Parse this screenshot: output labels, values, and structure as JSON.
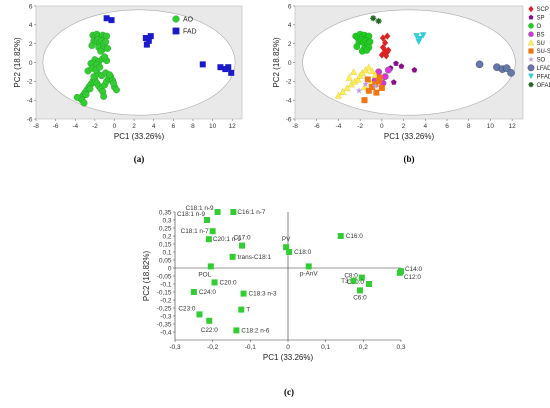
{
  "chart_data": [
    {
      "panel": "(a)",
      "type": "scatter",
      "xlabel": "PC1 (33.26%)",
      "ylabel": "PC2 (18.82%)",
      "xlim": [
        -8,
        13
      ],
      "ylim": [
        -6,
        6
      ],
      "xticks": [
        -8,
        -6,
        -4,
        -2,
        0,
        2,
        4,
        6,
        8,
        10,
        12
      ],
      "yticks": [
        -6,
        -4,
        -2,
        0,
        2,
        4,
        6
      ],
      "confidence_ellipse": true,
      "legend_position": "top-right",
      "series": [
        {
          "name": "AO",
          "color": "#33cc33",
          "marker": "circle",
          "x": [
            -2.2,
            -2.0,
            -1.8,
            -1.6,
            -1.4,
            -1.2,
            -1.0,
            -0.8,
            -2.1,
            -1.9,
            -1.7,
            -1.5,
            -1.3,
            -1.1,
            -0.9,
            -1.6,
            -1.2,
            -0.7,
            -2.3,
            -1.4,
            -2.0,
            -1.6,
            -1.2,
            -0.8,
            -2.4,
            -1.8,
            -1.0,
            -3.5,
            -3.2,
            -3.0,
            -2.8,
            -2.6,
            -2.4,
            -2.2,
            -2.0,
            -1.8,
            -1.6,
            -1.4,
            -1.2,
            -1.0,
            -0.8,
            -0.6,
            -0.4,
            -0.2,
            0.0,
            0.2,
            -3.8,
            -3.3,
            -2.9,
            -2.5,
            -2.1,
            -1.7,
            -1.3,
            -0.9,
            -0.5,
            -0.1,
            -2.7,
            -2.3,
            -1.9,
            -1.5,
            -3.1,
            -1.1
          ],
          "y": [
            2.9,
            2.7,
            3.0,
            2.8,
            2.6,
            2.9,
            2.7,
            2.8,
            2.3,
            2.2,
            2.4,
            2.1,
            2.3,
            2.0,
            2.2,
            1.6,
            1.4,
            1.5,
            1.8,
            1.2,
            0.3,
            0.1,
            0.4,
            0.2,
            -0.1,
            -0.2,
            0.6,
            -3.8,
            -3.5,
            -3.2,
            -2.9,
            -2.6,
            -2.3,
            -2.0,
            -1.8,
            -2.2,
            -2.5,
            -2.8,
            -3.1,
            -2.4,
            -2.0,
            -1.7,
            -1.5,
            -1.9,
            -2.6,
            -2.9,
            -3.7,
            -4.0,
            -3.4,
            -2.8,
            -1.5,
            -1.2,
            -1.4,
            -1.1,
            -1.3,
            -2.2,
            -0.9,
            -0.6,
            -0.8,
            -0.5,
            -4.3,
            -3.6
          ]
        },
        {
          "name": "FAD",
          "color": "#1a1acc",
          "marker": "square",
          "x": [
            -0.8,
            -0.3,
            3.2,
            3.5,
            3.7,
            3.3,
            9.0,
            10.8,
            11.3,
            11.6,
            11.9
          ],
          "y": [
            4.7,
            4.5,
            2.6,
            2.3,
            2.8,
            1.9,
            -0.2,
            -0.5,
            -0.7,
            -0.5,
            -1.1
          ]
        }
      ]
    },
    {
      "panel": "(b)",
      "type": "scatter",
      "xlabel": "PC1 (33.26%)",
      "ylabel": "PC2 (18.82%)",
      "xlim": [
        -8,
        13
      ],
      "ylim": [
        -6,
        6
      ],
      "xticks": [
        -8,
        -6,
        -4,
        -2,
        0,
        2,
        4,
        6,
        8,
        10,
        12
      ],
      "yticks": [
        -6,
        -4,
        -2,
        0,
        2,
        4,
        6
      ],
      "confidence_ellipse": true,
      "legend_position": "right",
      "series": [
        {
          "name": "SCP",
          "color": "#dd2222",
          "marker": "diamond",
          "x": [
            0.1,
            0.3,
            0.5,
            0.2,
            0.4,
            0.0,
            0.6,
            0.3,
            0.1,
            0.5
          ],
          "y": [
            1.6,
            1.3,
            1.1,
            1.0,
            0.7,
            0.8,
            1.3,
            2.1,
            2.6,
            2.8
          ]
        },
        {
          "name": "SP",
          "color": "#881188",
          "marker": "pentagon",
          "x": [
            1.8,
            1.1,
            3.0,
            1.3,
            0.8
          ],
          "y": [
            -0.4,
            -2.1,
            -0.8,
            -0.1,
            -0.6
          ]
        },
        {
          "name": "O",
          "color": "#22cc22",
          "marker": "circle",
          "x": [
            -2.4,
            -2.2,
            -2.0,
            -1.8,
            -1.6,
            -1.4,
            -1.2,
            -2.1,
            -1.9,
            -1.7,
            -1.5,
            -1.3,
            -1.1,
            -2.3,
            -1.6,
            -1.2,
            -1.8,
            -1.4
          ],
          "y": [
            2.8,
            2.6,
            3.0,
            2.7,
            2.9,
            2.6,
            2.8,
            2.2,
            2.4,
            2.1,
            2.3,
            2.0,
            2.2,
            1.7,
            1.5,
            1.6,
            1.2,
            1.3
          ]
        },
        {
          "name": "BS",
          "color": "#dd33dd",
          "marker": "circle",
          "x": [
            -0.3,
            0.3,
            0.6,
            -0.6,
            0.1
          ],
          "y": [
            -1.0,
            -1.5,
            -0.8,
            -1.9,
            -2.2
          ]
        },
        {
          "name": "SU",
          "color": "#ffee55",
          "marker": "triangle",
          "x": [
            -4.0,
            -3.6,
            -3.2,
            -2.8,
            -2.5,
            -2.2,
            -2.0,
            -1.8,
            -1.5,
            -1.2,
            -0.9,
            -0.6,
            -2.6,
            -3.0,
            -1.6,
            -1.0
          ],
          "y": [
            -3.5,
            -3.1,
            -2.7,
            -2.3,
            -2.0,
            -1.8,
            -1.4,
            -1.1,
            -0.8,
            -0.5,
            -0.9,
            -1.3,
            -1.0,
            -1.6,
            -2.6,
            -2.2
          ]
        },
        {
          "name": "SU-SO",
          "color": "#ee7711",
          "marker": "square",
          "x": [
            -1.6,
            -1.2,
            -0.9,
            -0.6,
            -0.3,
            0.0,
            -0.5,
            -0.2,
            -1.3
          ],
          "y": [
            -4.0,
            -3.0,
            -2.6,
            -2.3,
            -2.0,
            -2.7,
            -3.2,
            -1.6,
            -1.8
          ]
        },
        {
          "name": "SO",
          "color": "#bb99ee",
          "marker": "star",
          "x": [
            -1.5,
            -2.1,
            -0.6
          ],
          "y": [
            -2.3,
            -3.0,
            -2.5
          ]
        },
        {
          "name": "LFAD",
          "color": "#6677aa",
          "marker": "sphere",
          "x": [
            9.0,
            10.6,
            11.1,
            11.5,
            11.9
          ],
          "y": [
            -0.2,
            -0.5,
            -0.7,
            -0.6,
            -1.1
          ]
        },
        {
          "name": "PFAD",
          "color": "#33ccdd",
          "marker": "triangle-down",
          "x": [
            3.2,
            3.5,
            3.8,
            3.4
          ],
          "y": [
            2.8,
            2.5,
            2.9,
            2.2
          ]
        },
        {
          "name": "OFAD",
          "color": "#226622",
          "marker": "cross",
          "x": [
            -0.8,
            -0.3
          ],
          "y": [
            4.7,
            4.4
          ]
        }
      ]
    },
    {
      "panel": "(c)",
      "type": "scatter",
      "xlabel": "PC1 (33.26%)",
      "ylabel": "PC2 (18.82%)",
      "xlim": [
        -0.3,
        0.3
      ],
      "ylim": [
        -0.45,
        0.35
      ],
      "xticks": [
        -0.3,
        -0.2,
        -0.1,
        0,
        0.1,
        0.2,
        0.3
      ],
      "yticks": [
        -0.4,
        -0.35,
        -0.3,
        -0.25,
        -0.2,
        -0.15,
        -0.1,
        -0.05,
        0,
        0.05,
        0.1,
        0.15,
        0.2,
        0.25,
        0.3,
        0.35
      ],
      "tick_labels_x": [
        "-0,3",
        "-0,2",
        "-0,1",
        "0",
        "0,1",
        "0,2",
        "0,3"
      ],
      "tick_labels_y": [
        "-0,4",
        "-0,35",
        "-0,3",
        "-0,25",
        "-0,2",
        "-0,15",
        "-0,1",
        "-0,05",
        "0",
        "0,05",
        "0,1",
        "0,15",
        "0,2",
        "0,25",
        "0,3",
        "0,35"
      ],
      "color": "#33cc33",
      "marker": "square",
      "points": [
        {
          "label": "C18:1 n-9",
          "x": -0.187,
          "y": 0.35
        },
        {
          "label": "C16:1 n-7",
          "x": -0.145,
          "y": 0.35
        },
        {
          "label": "C18:1 n-9",
          "x": -0.215,
          "y": 0.3
        },
        {
          "label": "C18:1 n-7",
          "x": -0.2,
          "y": 0.23
        },
        {
          "label": "C20:1 n-9",
          "x": -0.21,
          "y": 0.18
        },
        {
          "label": "C17:0",
          "x": -0.122,
          "y": 0.14
        },
        {
          "label": "PV",
          "x": -0.005,
          "y": 0.13
        },
        {
          "label": "C18:0",
          "x": 0.003,
          "y": 0.1
        },
        {
          "label": "C16:0",
          "x": 0.14,
          "y": 0.2
        },
        {
          "label": "trans-C18:1",
          "x": -0.147,
          "y": 0.07
        },
        {
          "label": "POL",
          "x": -0.205,
          "y": 0.01
        },
        {
          "label": "p-AnV",
          "x": 0.055,
          "y": 0.01
        },
        {
          "label": "C14:0",
          "x": 0.3,
          "y": -0.02
        },
        {
          "label": "C12:0",
          "x": 0.297,
          "y": -0.03
        },
        {
          "label": "C8:0",
          "x": 0.196,
          "y": -0.06
        },
        {
          "label": "C10:0",
          "x": 0.215,
          "y": -0.1
        },
        {
          "label": "T3",
          "x": 0.174,
          "y": -0.08
        },
        {
          "label": "C6:0",
          "x": 0.191,
          "y": -0.14
        },
        {
          "label": "C20:0",
          "x": -0.195,
          "y": -0.09
        },
        {
          "label": "C24:0",
          "x": -0.25,
          "y": -0.15
        },
        {
          "label": "C18:3 n-3",
          "x": -0.118,
          "y": -0.16
        },
        {
          "label": "C23:0",
          "x": -0.235,
          "y": -0.29
        },
        {
          "label": "T",
          "x": -0.124,
          "y": -0.26
        },
        {
          "label": "C22:0",
          "x": -0.209,
          "y": -0.33
        },
        {
          "label": "C18:2 n-6",
          "x": -0.137,
          "y": -0.39
        }
      ]
    }
  ],
  "captions": {
    "a": "(a)",
    "b": "(b)",
    "c": "(c)"
  }
}
